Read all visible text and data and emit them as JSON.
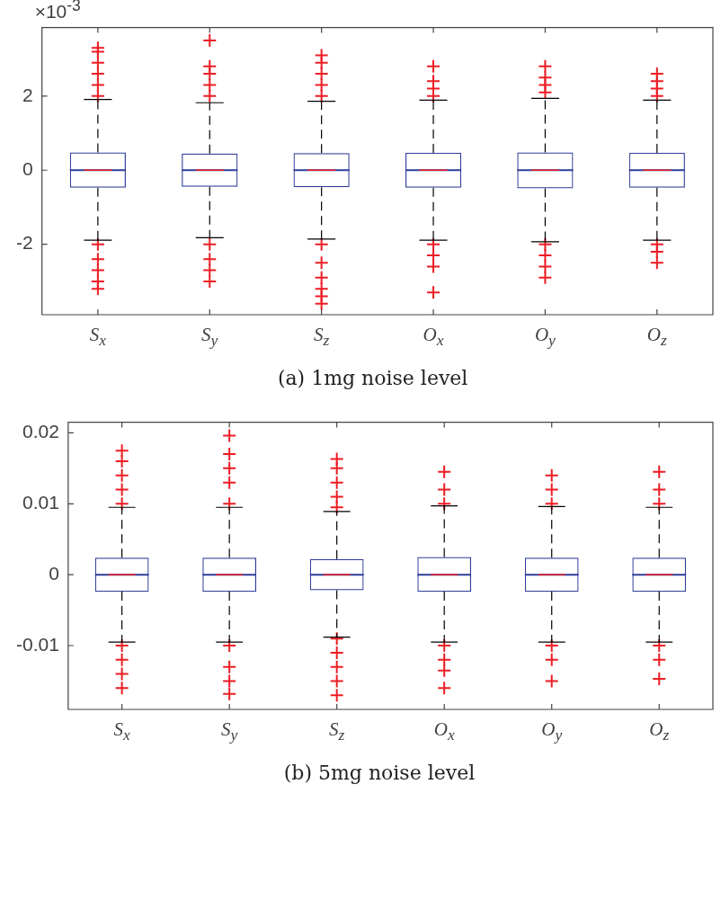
{
  "chart_data": [
    {
      "type": "box",
      "title": "(a) 1mg noise level",
      "annotations": [
        "×10$^{-3}$"
      ],
      "categories": [
        "S$_{x}$",
        "S$_{y}$",
        "S$_{z}$",
        "O$_{x}$",
        "O$_{y}$",
        "O$_{z}$"
      ],
      "ylim": [
        -3.9,
        3.85
      ],
      "yticks": [
        -2,
        0,
        2
      ],
      "grid": false,
      "legend": false,
      "series": [
        {
          "color": "#2e3d9a",
          "boxes": [
            {
              "low": -1.89,
              "q1": -0.47,
              "median": 0,
              "q3": 0.48,
              "high": 1.91,
              "outliers": [
                2.0,
                2.3,
                2.6,
                2.9,
                3.2,
                3.3,
                -2.0,
                -2.4,
                -2.7,
                -3.0,
                -3.2
              ]
            },
            {
              "low": -1.82,
              "q1": -0.45,
              "median": 0,
              "q3": 0.45,
              "high": 1.82,
              "outliers": [
                2.0,
                2.3,
                2.6,
                2.8,
                3.5,
                -2.0,
                -2.4,
                -2.7,
                -3.0
              ]
            },
            {
              "low": -1.86,
              "q1": -0.46,
              "median": 0,
              "q3": 0.46,
              "high": 1.86,
              "outliers": [
                2.0,
                2.3,
                2.6,
                2.9,
                3.1,
                -2.0,
                -2.5,
                -2.9,
                -3.2,
                -3.4,
                -3.6
              ]
            },
            {
              "low": -1.89,
              "q1": -0.47,
              "median": 0,
              "q3": 0.47,
              "high": 1.89,
              "outliers": [
                2.0,
                2.2,
                2.4,
                2.8,
                -2.0,
                -2.3,
                -2.6,
                -3.3
              ]
            },
            {
              "low": -1.93,
              "q1": -0.49,
              "median": 0,
              "q3": 0.48,
              "high": 1.94,
              "outliers": [
                2.1,
                2.3,
                2.5,
                2.8,
                -2.0,
                -2.3,
                -2.6,
                -2.9
              ]
            },
            {
              "low": -1.89,
              "q1": -0.47,
              "median": 0,
              "q3": 0.47,
              "high": 1.89,
              "outliers": [
                2.0,
                2.2,
                2.4,
                2.6,
                -2.0,
                -2.2,
                -2.5
              ]
            }
          ]
        }
      ]
    },
    {
      "type": "box",
      "title": "(b) 5mg noise level",
      "categories": [
        "S$_{x}$",
        "S$_{y}$",
        "S$_{z}$",
        "O$_{x}$",
        "O$_{y}$",
        "O$_{z}$"
      ],
      "ylim": [
        -0.019,
        0.0215
      ],
      "yticks": [
        -0.01,
        0,
        0.01,
        0.02
      ],
      "grid": false,
      "legend": false,
      "series": [
        {
          "color": "#2e3d9a",
          "boxes": [
            {
              "low": -0.0095,
              "q1": -0.0024,
              "median": 0,
              "q3": 0.0024,
              "high": 0.0095,
              "outliers": [
                0.01,
                0.012,
                0.014,
                0.016,
                0.0175,
                -0.01,
                -0.012,
                -0.014,
                -0.016
              ]
            },
            {
              "low": -0.0095,
              "q1": -0.0024,
              "median": 0,
              "q3": 0.0024,
              "high": 0.0095,
              "outliers": [
                0.01,
                0.013,
                0.015,
                0.017,
                0.0196,
                -0.01,
                -0.013,
                -0.015,
                -0.0168
              ]
            },
            {
              "low": -0.0088,
              "q1": -0.0022,
              "median": 0,
              "q3": 0.0022,
              "high": 0.0089,
              "outliers": [
                0.0095,
                0.011,
                0.013,
                0.015,
                0.0163,
                -0.009,
                -0.011,
                -0.013,
                -0.015,
                -0.017
              ]
            },
            {
              "low": -0.0095,
              "q1": -0.0024,
              "median": 0,
              "q3": 0.0025,
              "high": 0.0097,
              "outliers": [
                0.01,
                0.012,
                0.0145,
                -0.01,
                -0.012,
                -0.0135,
                -0.016
              ]
            },
            {
              "low": -0.0095,
              "q1": -0.0024,
              "median": 0,
              "q3": 0.0024,
              "high": 0.0096,
              "outliers": [
                0.01,
                0.012,
                0.014,
                -0.01,
                -0.012,
                -0.015
              ]
            },
            {
              "low": -0.0095,
              "q1": -0.0024,
              "median": 0,
              "q3": 0.0024,
              "high": 0.0095,
              "outliers": [
                0.01,
                0.012,
                0.0145,
                -0.01,
                -0.012,
                -0.0147
              ]
            }
          ]
        }
      ]
    }
  ]
}
